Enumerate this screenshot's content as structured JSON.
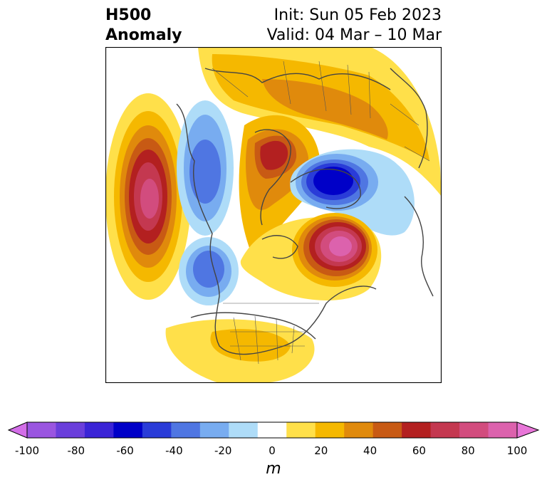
{
  "title": {
    "left_line1": "H500",
    "left_line2": "Anomaly",
    "right_line1": "Init: Sun 05 Feb 2023",
    "right_line2": "Valid: 04 Mar – 10 Mar"
  },
  "map": {
    "projection": "polar-stereographic",
    "field": "500 hPa geopotential height anomaly",
    "features": [
      {
        "name": "pacific-ridge",
        "sign": "positive",
        "peak": 85
      },
      {
        "name": "western-canada-trough",
        "sign": "negative",
        "peak": -45
      },
      {
        "name": "alaska-trough",
        "sign": "negative",
        "peak": -40
      },
      {
        "name": "greenland-ridge",
        "sign": "positive",
        "peak": 60
      },
      {
        "name": "arctic-low",
        "sign": "negative",
        "peak": -65
      },
      {
        "name": "north-atlantic-ridge",
        "sign": "positive",
        "peak": 90
      },
      {
        "name": "eurasia-ridge",
        "sign": "positive",
        "peak": 40
      },
      {
        "name": "southern-us-ridge",
        "sign": "positive",
        "peak": 25
      }
    ]
  },
  "colorbar": {
    "unit": "m",
    "ticks": [
      "-100",
      "-80",
      "-60",
      "-40",
      "-20",
      "0",
      "20",
      "40",
      "60",
      "80",
      "100"
    ],
    "colors": [
      "#d36ee8",
      "#9a55e0",
      "#6a3edb",
      "#3a24d6",
      "#0000c8",
      "#2a3cd8",
      "#4f76e2",
      "#78acf0",
      "#aedcf8",
      "#ffffff",
      "#ffe04a",
      "#f5b800",
      "#e08a0c",
      "#c85a14",
      "#b32020",
      "#c43850",
      "#d24c7e",
      "#dc62ad",
      "#e876d8"
    ],
    "extend": "both"
  }
}
